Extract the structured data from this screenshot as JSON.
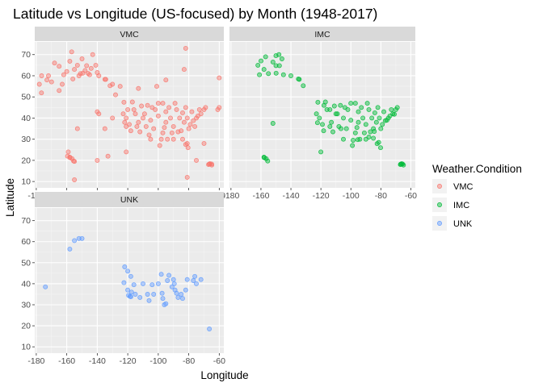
{
  "chart_data": {
    "type": "scatter",
    "title": "Latitude vs Longitude (US-focused) by Month (1948-2017)",
    "xlabel": "Longitude",
    "ylabel": "Latitude",
    "facets": [
      "VMC",
      "IMC",
      "UNK"
    ],
    "xlim": [
      -181,
      -57
    ],
    "ylim": [
      7,
      76
    ],
    "x_ticks": [
      -180,
      -160,
      -140,
      -120,
      -100,
      -80,
      -60
    ],
    "y_ticks": [
      10,
      20,
      30,
      40,
      50,
      60,
      70
    ],
    "grid": true,
    "legend": {
      "title": "Weather.Condition",
      "position": "right",
      "entries": [
        "VMC",
        "IMC",
        "UNK"
      ]
    },
    "colors": {
      "VMC": "#F8766D",
      "IMC": "#00BA38",
      "UNK": "#619CFF"
    },
    "series": [
      {
        "name": "VMC",
        "points": [
          [
            -151,
            61
          ],
          [
            -149.5,
            61.2
          ],
          [
            -147,
            64.8
          ],
          [
            -152,
            60
          ],
          [
            -156,
            58.5
          ],
          [
            -162,
            60.5
          ],
          [
            -165,
            64.5
          ],
          [
            -158,
            66.9
          ],
          [
            -156.8,
            71.3
          ],
          [
            -146,
            61.1
          ],
          [
            -135,
            58.3
          ],
          [
            -134.4,
            58.3
          ],
          [
            -131.6,
            55.3
          ],
          [
            -176.6,
            51.9
          ],
          [
            -170,
            57.1
          ],
          [
            -143,
            70
          ],
          [
            -160,
            62
          ],
          [
            -155,
            63
          ],
          [
            -153,
            65
          ],
          [
            -148,
            62.5
          ],
          [
            -144,
            63.5
          ],
          [
            -141,
            65
          ],
          [
            -139,
            60
          ],
          [
            -150,
            68
          ],
          [
            -163,
            56
          ],
          [
            -145,
            60.5
          ],
          [
            -140,
            61.5
          ],
          [
            -168,
            66
          ],
          [
            -172,
            60
          ],
          [
            -130,
            56
          ],
          [
            -157.9,
            21.3
          ],
          [
            -156.5,
            20.8
          ],
          [
            -155.5,
            19.7
          ],
          [
            -159.5,
            22
          ],
          [
            -158,
            21.5
          ],
          [
            -155,
            19.5
          ],
          [
            -120,
            44
          ],
          [
            -115,
            42
          ],
          [
            -110,
            40
          ],
          [
            -105,
            39
          ],
          [
            -100,
            41
          ],
          [
            -95,
            38
          ],
          [
            -90,
            36
          ],
          [
            -85,
            34
          ],
          [
            -80,
            35
          ],
          [
            -75,
            40
          ],
          [
            -72,
            42
          ],
          [
            -70,
            44
          ],
          [
            -122,
            38
          ],
          [
            -118,
            34
          ],
          [
            -112,
            33.5
          ],
          [
            -106,
            32
          ],
          [
            -98,
            30
          ],
          [
            -97,
            33
          ],
          [
            -94,
            30
          ],
          [
            -90,
            30
          ],
          [
            -84,
            30
          ],
          [
            -81,
            28
          ],
          [
            -80.5,
            26
          ],
          [
            -82,
            27.5
          ],
          [
            -122.5,
            47.5
          ],
          [
            -117,
            47.6
          ],
          [
            -111,
            45.7
          ],
          [
            -104,
            45
          ],
          [
            -97,
            47
          ],
          [
            -93,
            45
          ],
          [
            -88,
            44
          ],
          [
            -84,
            42.5
          ],
          [
            -78,
            43
          ],
          [
            -74,
            41
          ],
          [
            -108,
            36
          ],
          [
            -103,
            35
          ],
          [
            -96,
            35.5
          ],
          [
            -87,
            33.5
          ],
          [
            -83,
            38
          ],
          [
            -77,
            38.8
          ],
          [
            -121,
            40
          ],
          [
            -119,
            37
          ],
          [
            -114,
            36
          ],
          [
            -109,
            42
          ],
          [
            -102,
            44
          ],
          [
            -92,
            40
          ],
          [
            -86,
            40
          ],
          [
            -81,
            40
          ],
          [
            -76,
            36
          ],
          [
            -123,
            42
          ],
          [
            -116,
            44
          ],
          [
            -113,
            38
          ],
          [
            -107,
            46
          ],
          [
            -100,
            47
          ],
          [
            -95,
            43
          ],
          [
            -89,
            47
          ],
          [
            -82,
            45
          ],
          [
            -79,
            37
          ],
          [
            -73,
            44
          ],
          [
            -69,
            45
          ],
          [
            -91,
            33
          ],
          [
            -99,
            27
          ],
          [
            -105,
            30
          ],
          [
            -66.1,
            18.4
          ],
          [
            -65,
            18.3
          ],
          [
            -67,
            18
          ],
          [
            -64.9,
            17.8
          ],
          [
            -66.5,
            18.2
          ],
          [
            -82,
            73
          ],
          [
            -60,
            59
          ],
          [
            -121,
            36
          ],
          [
            -125,
            55
          ],
          [
            -121,
            24
          ],
          [
            -135,
            35
          ],
          [
            -140,
            43
          ],
          [
            -128,
            51
          ],
          [
            -153,
            35
          ],
          [
            -165,
            53
          ],
          [
            -155,
            10.8
          ],
          [
            -81,
            12
          ],
          [
            -101,
            55
          ],
          [
            -113,
            54
          ],
          [
            -60,
            45
          ],
          [
            -70,
            28
          ],
          [
            -61,
            44
          ],
          [
            -173,
            58
          ],
          [
            -178,
            56
          ],
          [
            -176.5,
            60
          ],
          [
            -140,
            20
          ],
          [
            -159,
            24
          ],
          [
            -130,
            40
          ],
          [
            -83,
            63
          ],
          [
            -95,
            58
          ],
          [
            -133,
            22
          ],
          [
            -139,
            42
          ],
          [
            -75,
            20
          ]
        ]
      },
      {
        "name": "IMC",
        "points": [
          [
            -152,
            66.5
          ],
          [
            -150,
            64.8
          ],
          [
            -147.7,
            64.8
          ],
          [
            -155,
            61
          ],
          [
            -158,
            63
          ],
          [
            -161,
            60.5
          ],
          [
            -149.9,
            61.2
          ],
          [
            -145,
            60.5
          ],
          [
            -140,
            60
          ],
          [
            -135,
            58.5
          ],
          [
            -131.8,
            55.3
          ],
          [
            -134.4,
            58.3
          ],
          [
            -150,
            69.5
          ],
          [
            -148,
            70
          ],
          [
            -160,
            67
          ],
          [
            -162,
            65
          ],
          [
            -156.9,
            69
          ],
          [
            -146,
            68
          ],
          [
            -158,
            21.5
          ],
          [
            -157.8,
            21.3
          ],
          [
            -156.5,
            20.8
          ],
          [
            -155.5,
            19.7
          ],
          [
            -152,
            37.5
          ],
          [
            -120,
            24
          ],
          [
            -122,
            47.5
          ],
          [
            -118,
            46
          ],
          [
            -114,
            44
          ],
          [
            -110,
            42
          ],
          [
            -105,
            40
          ],
          [
            -100,
            39
          ],
          [
            -95,
            38
          ],
          [
            -90,
            37
          ],
          [
            -85,
            35
          ],
          [
            -80,
            35
          ],
          [
            -76,
            39
          ],
          [
            -72,
            42
          ],
          [
            -70,
            44
          ],
          [
            -122.3,
            37.8
          ],
          [
            -118.2,
            34
          ],
          [
            -112,
            33.5
          ],
          [
            -106.6,
            35
          ],
          [
            -98.5,
            29.5
          ],
          [
            -95.4,
            29.8
          ],
          [
            -90,
            30
          ],
          [
            -84.4,
            33.7
          ],
          [
            -81.4,
            28.5
          ],
          [
            -80.2,
            26
          ],
          [
            -82.5,
            27.9
          ],
          [
            -117,
            47.6
          ],
          [
            -111,
            45.7
          ],
          [
            -104,
            45
          ],
          [
            -97,
            47
          ],
          [
            -93,
            45
          ],
          [
            -88,
            44
          ],
          [
            -84,
            42.5
          ],
          [
            -78,
            43
          ],
          [
            -74,
            41
          ],
          [
            -108,
            36
          ],
          [
            -103,
            35
          ],
          [
            -96,
            35.5
          ],
          [
            -87,
            33.5
          ],
          [
            -83,
            38
          ],
          [
            -77,
            38.8
          ],
          [
            -121,
            40
          ],
          [
            -119,
            37
          ],
          [
            -114,
            36
          ],
          [
            -109,
            42
          ],
          [
            -102,
            44
          ],
          [
            -92,
            40
          ],
          [
            -86,
            40
          ],
          [
            -81,
            40
          ],
          [
            -123,
            42
          ],
          [
            -116,
            44
          ],
          [
            -113,
            38
          ],
          [
            -107,
            46
          ],
          [
            -100,
            47
          ],
          [
            -95,
            43
          ],
          [
            -89,
            47
          ],
          [
            -82,
            45
          ],
          [
            -79,
            37
          ],
          [
            -73,
            44
          ],
          [
            -69,
            45
          ],
          [
            -91,
            33
          ],
          [
            -99,
            27
          ],
          [
            -105,
            30
          ],
          [
            -97,
            33
          ],
          [
            -94,
            30
          ],
          [
            -88,
            31
          ],
          [
            -85,
            30.5
          ],
          [
            -75,
            40
          ],
          [
            -71,
            41.8
          ],
          [
            -66.1,
            18.4
          ],
          [
            -67,
            18
          ],
          [
            -65.5,
            18.3
          ],
          [
            -64.9,
            17.8
          ],
          [
            -66.7,
            18.2
          ]
        ]
      },
      {
        "name": "UNK",
        "points": [
          [
            -174,
            38.5
          ],
          [
            -158,
            56.5
          ],
          [
            -155,
            60.5
          ],
          [
            -152,
            61.5
          ],
          [
            -150,
            61.5
          ],
          [
            -122,
            48
          ],
          [
            -120,
            46
          ],
          [
            -118,
            43.5
          ],
          [
            -122.5,
            40.5
          ],
          [
            -120,
            37
          ],
          [
            -119.5,
            34.5
          ],
          [
            -118.5,
            34
          ],
          [
            -118,
            33.8
          ],
          [
            -117.5,
            36
          ],
          [
            -116,
            39.5
          ],
          [
            -115,
            35
          ],
          [
            -112,
            33.5
          ],
          [
            -110,
            40
          ],
          [
            -107,
            35
          ],
          [
            -106,
            32
          ],
          [
            -104,
            39.5
          ],
          [
            -103,
            35
          ],
          [
            -100,
            40
          ],
          [
            -97.5,
            35.5
          ],
          [
            -97,
            33
          ],
          [
            -96,
            30
          ],
          [
            -95,
            30.5
          ],
          [
            -94,
            41.5
          ],
          [
            -91,
            38.5
          ],
          [
            -90,
            42
          ],
          [
            -89.5,
            40
          ],
          [
            -89,
            37
          ],
          [
            -88,
            35.5
          ],
          [
            -87,
            33.5
          ],
          [
            -85,
            35
          ],
          [
            -84,
            33
          ],
          [
            -82,
            37
          ],
          [
            -81,
            42
          ],
          [
            -77,
            41.5
          ],
          [
            -75,
            40
          ],
          [
            -76,
            43.5
          ],
          [
            -72,
            42
          ],
          [
            -66.5,
            18.5
          ],
          [
            -98,
            44.5
          ],
          [
            -93,
            44
          ]
        ]
      }
    ]
  }
}
